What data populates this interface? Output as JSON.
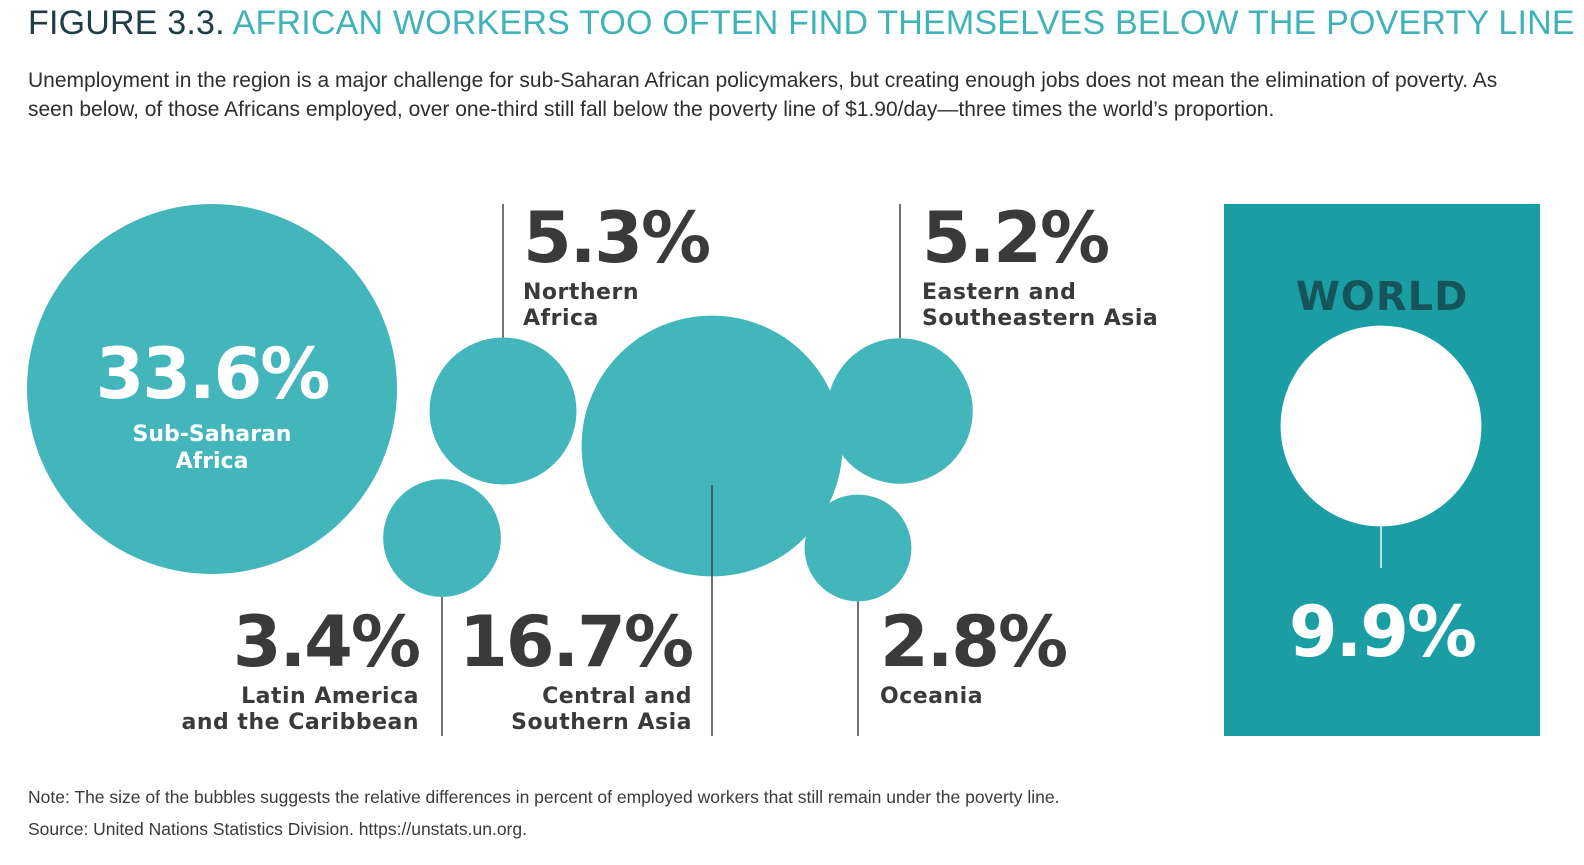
{
  "figure": {
    "label": "FIGURE 3.3.",
    "title": "AFRICAN WORKERS TOO OFTEN FIND THEMSELVES BELOW THE POVERTY LINE",
    "subtitle": "Unemployment in the region is a major challenge for sub-Saharan African policymakers, but creating enough jobs does not mean the elimination of poverty. As seen below, of those Africans employed, over one-third still fall below the poverty line of $1.90/day—three times the world’s proportion.",
    "note": "Note: The size of the bubbles suggests the relative differences in percent of employed workers that still remain under the poverty line.",
    "source": "Source: United Nations Statistics Division. https://unstats.un.org."
  },
  "colors": {
    "bubble": "#42b6ba",
    "world_panel": "#1a9ea4",
    "world_title": "#16545c",
    "value_text": "#3a3a3a",
    "leader_line": "#3a3a3a",
    "title_prefix": "#1f3d44",
    "title_main": "#3fb3b8"
  },
  "chart_data": {
    "type": "bubble",
    "unit": "%",
    "series": [
      {
        "region": "Sub-Saharan Africa",
        "label_lines": [
          "Sub-Saharan",
          "Africa"
        ],
        "value": 33.6,
        "display": "33.6%"
      },
      {
        "region": "Northern Africa",
        "label_lines": [
          "Northern",
          "Africa"
        ],
        "value": 5.3,
        "display": "5.3%"
      },
      {
        "region": "Central and Southern Asia",
        "label_lines": [
          "Central and",
          "Southern Asia"
        ],
        "value": 16.7,
        "display": "16.7%"
      },
      {
        "region": "Eastern and Southeastern Asia",
        "label_lines": [
          "Eastern and",
          "Southeastern Asia"
        ],
        "value": 5.2,
        "display": "5.2%"
      },
      {
        "region": "Latin America and the Caribbean",
        "label_lines": [
          "Latin America",
          "and the Caribbean"
        ],
        "value": 3.4,
        "display": "3.4%"
      },
      {
        "region": "Oceania",
        "label_lines": [
          "Oceania"
        ],
        "value": 2.8,
        "display": "2.8%"
      }
    ],
    "world": {
      "label": "WORLD",
      "value": 9.9,
      "display": "9.9%"
    }
  }
}
